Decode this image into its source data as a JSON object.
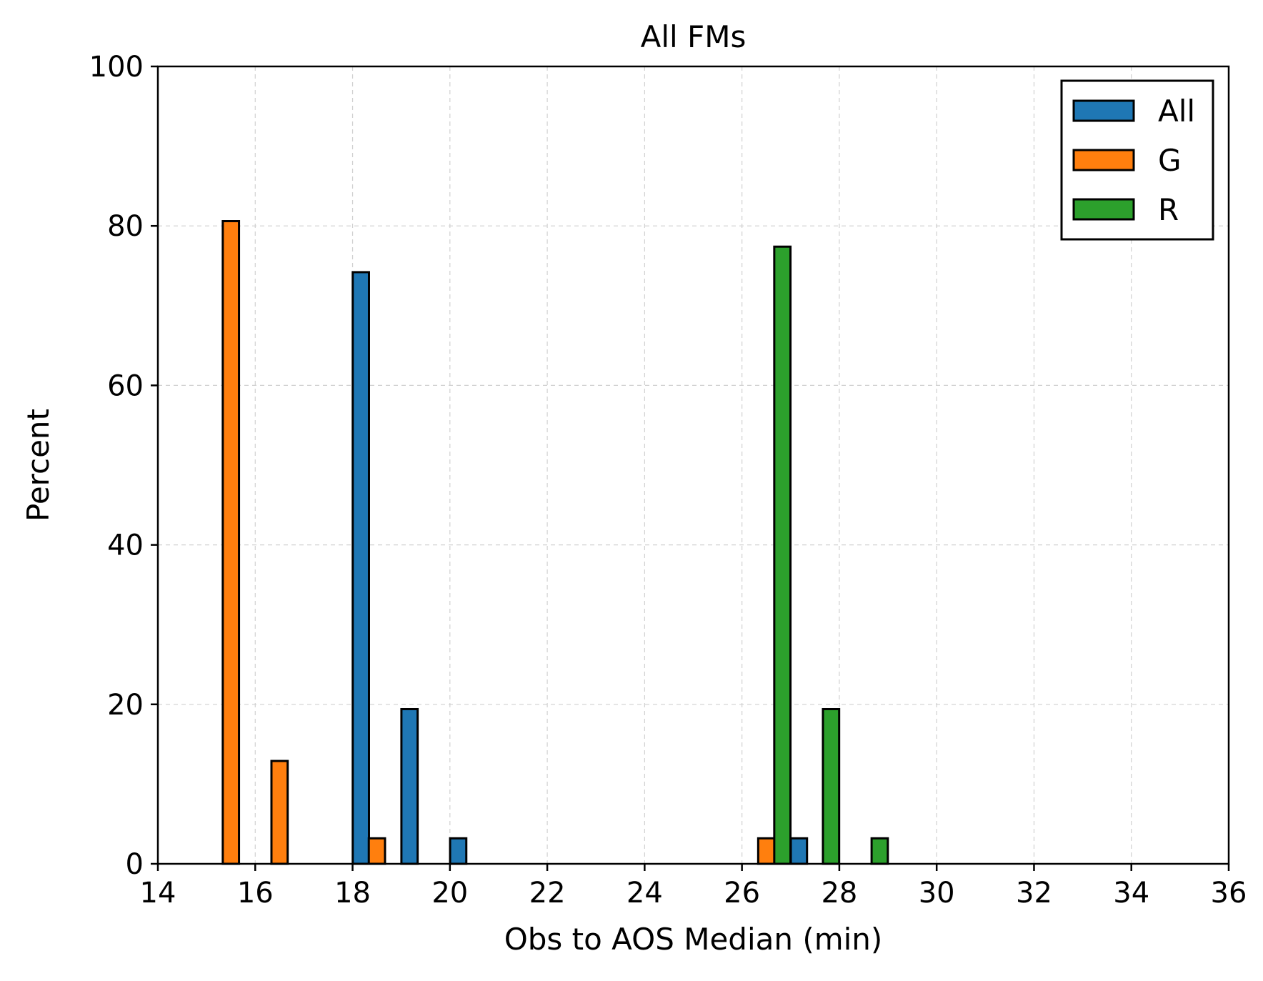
{
  "chart_data": {
    "type": "bar",
    "title": "All FMs",
    "xlabel": "Obs to AOS Median (min)",
    "ylabel": "Percent",
    "xlim": [
      14,
      36
    ],
    "ylim": [
      0,
      100
    ],
    "xticks": [
      "14",
      "16",
      "18",
      "20",
      "22",
      "24",
      "26",
      "28",
      "30",
      "32",
      "34",
      "36"
    ],
    "yticks": [
      "0",
      "20",
      "40",
      "60",
      "80",
      "100"
    ],
    "grid": true,
    "legend_position": "top-right",
    "bar_width": 0.3333,
    "series": [
      {
        "name": "All",
        "color": "#1f77b4",
        "points": [
          {
            "x": 18.17,
            "y": 74.2
          },
          {
            "x": 19.17,
            "y": 19.4
          },
          {
            "x": 20.17,
            "y": 3.2
          },
          {
            "x": 27.17,
            "y": 3.2
          }
        ]
      },
      {
        "name": "G",
        "color": "#ff7f0e",
        "points": [
          {
            "x": 15.5,
            "y": 80.6
          },
          {
            "x": 16.5,
            "y": 12.9
          },
          {
            "x": 18.5,
            "y": 3.2
          },
          {
            "x": 26.5,
            "y": 3.2
          }
        ]
      },
      {
        "name": "R",
        "color": "#2ca02c",
        "points": [
          {
            "x": 26.83,
            "y": 77.4
          },
          {
            "x": 27.83,
            "y": 19.4
          },
          {
            "x": 28.83,
            "y": 3.2
          }
        ]
      }
    ]
  }
}
